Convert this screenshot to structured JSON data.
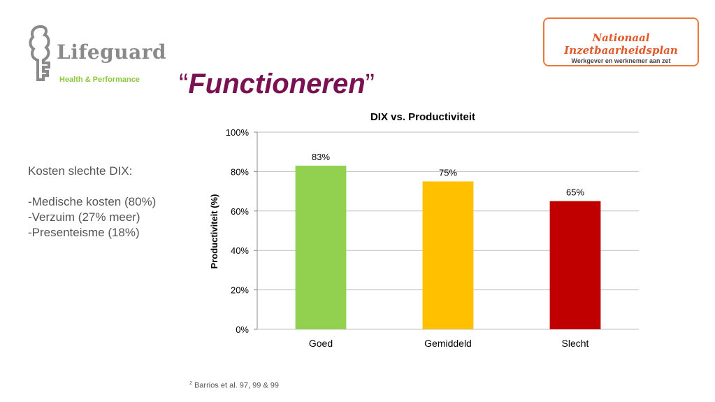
{
  "logo_left": {
    "name": "Lifeguard",
    "tagline": "Health & Performance"
  },
  "logo_right": {
    "title": "Nationaal Inzetbaarheidsplan",
    "subtitle": "Werkgever en werknemer aan zet"
  },
  "title": {
    "open_quote": "“",
    "text": "Functioneren",
    "close_quote": "”",
    "color": "#7a1152"
  },
  "bullets": [
    "Kosten slechte DIX:",
    "",
    "-Medische kosten (80%)",
    "-Verzuim (27% meer)",
    "-Presenteisme (18%)"
  ],
  "footnote": {
    "marker": "2",
    "text": "Barrios et al. 97, 99 & 99"
  },
  "chart_data": {
    "type": "bar",
    "title": "DIX vs. Productiviteit",
    "ylabel": "Productiviteit (%)",
    "xlabel": "",
    "categories": [
      "Goed",
      "Gemiddeld",
      "Slecht"
    ],
    "values": [
      83,
      75,
      65
    ],
    "data_labels": [
      "83%",
      "75%",
      "65%"
    ],
    "colors": [
      "#92d050",
      "#ffc000",
      "#c00000"
    ],
    "ylim": [
      0,
      100
    ],
    "yticks": [
      0,
      20,
      40,
      60,
      80,
      100
    ],
    "ytick_labels": [
      "0%",
      "20%",
      "40%",
      "60%",
      "80%",
      "100%"
    ],
    "grid": true,
    "legend": "none"
  }
}
